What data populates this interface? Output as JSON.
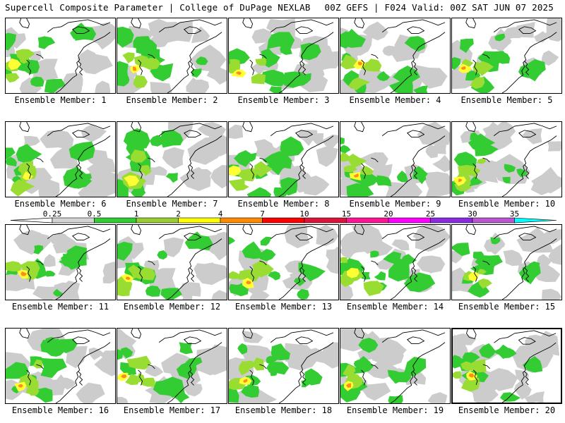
{
  "header": {
    "left": "Supercell Composite Parameter | College of DuPage NEXLAB",
    "right": "00Z GEFS | F024 Valid: 00Z SAT JUN 07 2025"
  },
  "panels": [
    {
      "caption": "Ensemble Member: 1"
    },
    {
      "caption": "Ensemble Member: 2"
    },
    {
      "caption": "Ensemble Member: 3"
    },
    {
      "caption": "Ensemble Member: 4"
    },
    {
      "caption": "Ensemble Member: 5"
    },
    {
      "caption": "Ensemble Member: 6"
    },
    {
      "caption": "Ensemble Member: 7"
    },
    {
      "caption": "Ensemble Member: 8"
    },
    {
      "caption": "Ensemble Member: 9"
    },
    {
      "caption": "Ensemble Member: 10"
    },
    {
      "caption": "Ensemble Member: 11"
    },
    {
      "caption": "Ensemble Member: 12"
    },
    {
      "caption": "Ensemble Member: 13"
    },
    {
      "caption": "Ensemble Member: 14"
    },
    {
      "caption": "Ensemble Member: 15"
    },
    {
      "caption": "Ensemble Member: 16"
    },
    {
      "caption": "Ensemble Member: 17"
    },
    {
      "caption": "Ensemble Member: 18"
    },
    {
      "caption": "Ensemble Member: 19"
    },
    {
      "caption": "Ensemble Member: 20",
      "selected": true
    }
  ],
  "colorbar": {
    "ticks": [
      "0.25",
      "0.5",
      "1",
      "2",
      "4",
      "7",
      "10",
      "15",
      "20",
      "25",
      "30",
      "35"
    ],
    "colors": [
      "#d3d3d3",
      "#32cd32",
      "#9acd32",
      "#ffff00",
      "#ff8c00",
      "#ff0000",
      "#dc143c",
      "#ff1493",
      "#ff00ff",
      "#8a2be2",
      "#ba55d3",
      "#00ffff"
    ]
  },
  "map_colors": {
    "gray": "#cccccc",
    "green": "#33cc33",
    "lightgreen": "#99dd33",
    "yellow": "#ffff33",
    "orange": "#ff8c1a"
  }
}
